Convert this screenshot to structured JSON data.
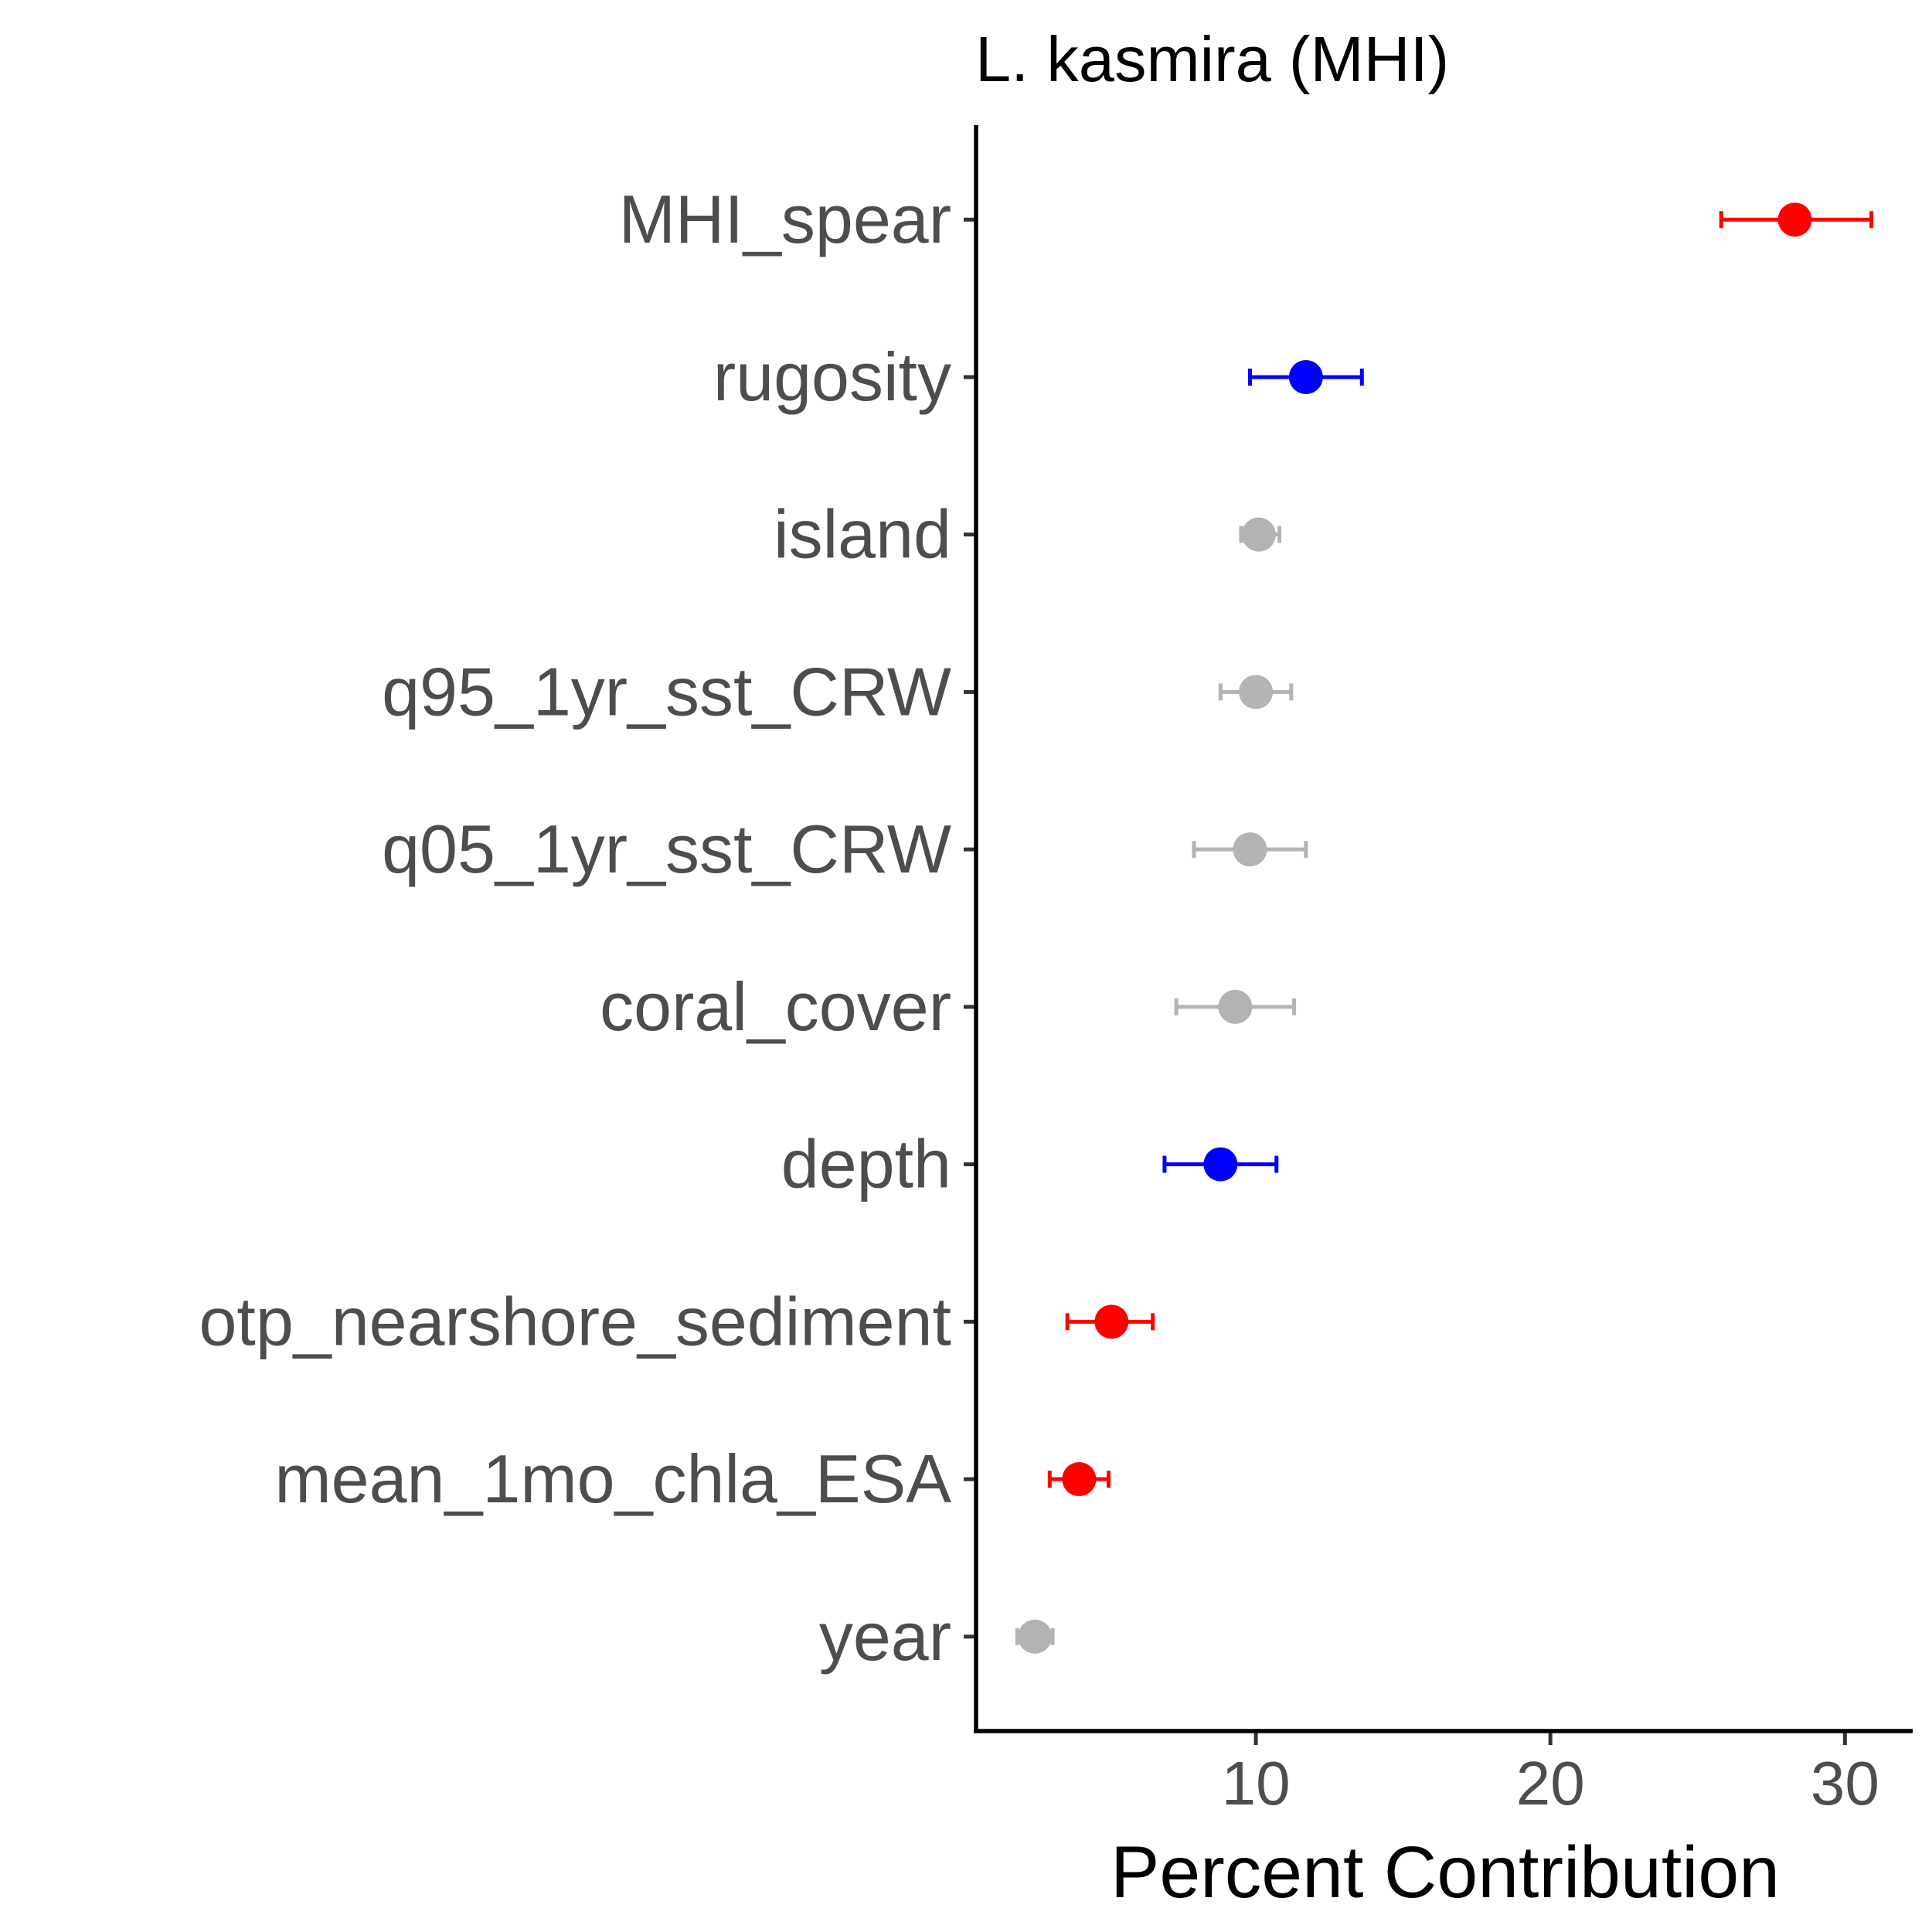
{
  "chart_data": {
    "type": "scatter",
    "title": "L. kasmira (MHI)",
    "xlabel": "Percent Contribution",
    "ylabel": "",
    "xlim": [
      0.5,
      32.3
    ],
    "xticks": [
      10,
      20,
      30
    ],
    "xtick_labels": [
      "10",
      "20",
      "30"
    ],
    "grid": false,
    "colors": {
      "red": "#ff0000",
      "blue": "#0000ff",
      "gray": "#b3b3b3"
    },
    "points": [
      {
        "label": "MHI_spear",
        "value": 28.3,
        "lower": 25.8,
        "upper": 30.9,
        "color": "red"
      },
      {
        "label": "rugosity",
        "value": 11.7,
        "lower": 9.8,
        "upper": 13.6,
        "color": "blue"
      },
      {
        "label": "island",
        "value": 10.1,
        "lower": 9.5,
        "upper": 10.8,
        "color": "gray"
      },
      {
        "label": "q95_1yr_sst_CRW",
        "value": 10.0,
        "lower": 8.8,
        "upper": 11.2,
        "color": "gray"
      },
      {
        "label": "q05_1yr_sst_CRW",
        "value": 9.8,
        "lower": 7.9,
        "upper": 11.7,
        "color": "gray"
      },
      {
        "label": "coral_cover",
        "value": 9.3,
        "lower": 7.3,
        "upper": 11.3,
        "color": "gray"
      },
      {
        "label": "depth",
        "value": 8.8,
        "lower": 6.9,
        "upper": 10.7,
        "color": "blue"
      },
      {
        "label": "otp_nearshore_sediment",
        "value": 5.1,
        "lower": 3.6,
        "upper": 6.5,
        "color": "red"
      },
      {
        "label": "mean_1mo_chla_ESA",
        "value": 4.0,
        "lower": 3.0,
        "upper": 5.0,
        "color": "red"
      },
      {
        "label": "year",
        "value": 2.5,
        "lower": 1.9,
        "upper": 3.1,
        "color": "gray"
      }
    ]
  }
}
